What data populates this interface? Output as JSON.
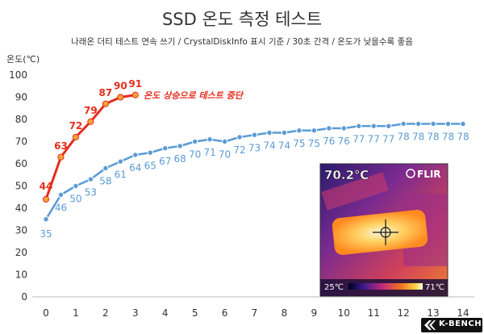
{
  "title": "SSD 온도 측정 테스트",
  "subtitle": "나래온 더티 테스트 연속 쓰기 / CrystalDiskInfo 표시 기준 / 30초 간격 / 온도가 낮을수록 좋음",
  "chart_data": {
    "type": "line",
    "ylabel": "온도(℃)",
    "xlabel": "",
    "xlim": [
      0,
      14
    ],
    "ylim": [
      0,
      100
    ],
    "x_ticks": [
      0,
      1,
      2,
      3,
      4,
      5,
      6,
      7,
      8,
      9,
      10,
      11,
      12,
      13,
      14
    ],
    "y_ticks": [
      0,
      10,
      20,
      30,
      40,
      50,
      60,
      70,
      80,
      90,
      100
    ],
    "grid": false,
    "series": [
      {
        "name": "",
        "color": "#e52d1d",
        "x": [
          0,
          0.5,
          1,
          1.5,
          2,
          2.5,
          3
        ],
        "values": [
          44,
          63,
          72,
          79,
          87,
          90,
          91
        ]
      },
      {
        "name": "",
        "color": "#5b9bd5",
        "x": [
          0,
          0.5,
          1,
          1.5,
          2,
          2.5,
          3,
          3.5,
          4,
          4.5,
          5,
          5.5,
          6,
          6.5,
          7,
          7.5,
          8,
          8.5,
          9,
          9.5,
          10,
          10.5,
          11,
          11.5,
          12,
          12.5,
          13,
          13.5,
          14
        ],
        "values": [
          35,
          46,
          50,
          53,
          58,
          61,
          64,
          65,
          67,
          68,
          70,
          71,
          70,
          72,
          73,
          74,
          74,
          75,
          75,
          76,
          76,
          77,
          77,
          77,
          78,
          78,
          78,
          78,
          78
        ]
      }
    ],
    "annotations": [
      {
        "text": "온도 상승으로 테스트 중단",
        "color": "#e52d1d"
      }
    ]
  },
  "thermal_inset": {
    "reading": "70.2℃",
    "brand": "FLIR",
    "scale_min": "25℃",
    "scale_max": "71℃"
  },
  "watermark": "K-BENCH"
}
